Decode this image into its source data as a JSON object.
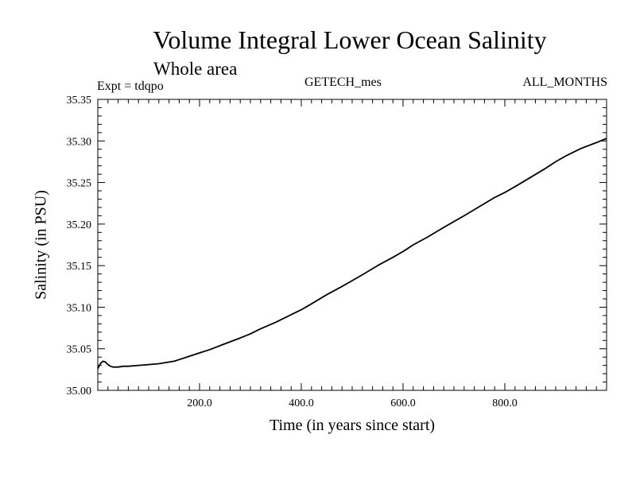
{
  "header": {
    "title": "Volume Integral Lower Ocean Salinity",
    "subtitle": "Whole area",
    "expt": "Expt = tdqpo",
    "center_label": "GETECH_mes",
    "right_label": "ALL_MONTHS"
  },
  "chart_data": {
    "type": "line",
    "title": "Volume Integral Lower Ocean Salinity",
    "subtitle": "Whole area",
    "xlabel": "Time (in years since start)",
    "ylabel": "Salinity (in PSU)",
    "xlim": [
      0,
      1000
    ],
    "ylim": [
      35.0,
      35.35
    ],
    "xticks": [
      200,
      400,
      600,
      800
    ],
    "xtick_labels": [
      "200.0",
      "400.0",
      "600.0",
      "800.0"
    ],
    "yticks": [
      35.0,
      35.05,
      35.1,
      35.15,
      35.2,
      35.25,
      35.3,
      35.35
    ],
    "ytick_labels": [
      "35.00",
      "35.05",
      "35.10",
      "35.15",
      "35.20",
      "35.25",
      "35.30",
      "35.35"
    ],
    "grid": false,
    "series": [
      {
        "x": [
          0,
          5,
          10,
          15,
          20,
          25,
          30,
          40,
          50,
          60,
          80,
          100,
          120,
          140,
          150,
          160,
          180,
          200,
          220,
          250,
          280,
          300,
          320,
          350,
          380,
          400,
          420,
          450,
          480,
          500,
          520,
          550,
          580,
          600,
          620,
          650,
          680,
          700,
          720,
          750,
          780,
          800,
          820,
          850,
          880,
          900,
          920,
          950,
          980,
          1000
        ],
        "y": [
          35.026,
          35.032,
          35.035,
          35.034,
          35.031,
          35.029,
          35.028,
          35.028,
          35.029,
          35.029,
          35.03,
          35.031,
          35.032,
          35.034,
          35.035,
          35.037,
          35.041,
          35.045,
          35.049,
          35.056,
          35.063,
          35.068,
          35.074,
          35.082,
          35.091,
          35.097,
          35.104,
          35.115,
          35.125,
          35.132,
          35.139,
          35.15,
          35.16,
          35.167,
          35.175,
          35.185,
          35.196,
          35.203,
          35.21,
          35.221,
          35.232,
          35.238,
          35.245,
          35.256,
          35.267,
          35.275,
          35.282,
          35.291,
          35.298,
          35.303
        ]
      }
    ]
  }
}
